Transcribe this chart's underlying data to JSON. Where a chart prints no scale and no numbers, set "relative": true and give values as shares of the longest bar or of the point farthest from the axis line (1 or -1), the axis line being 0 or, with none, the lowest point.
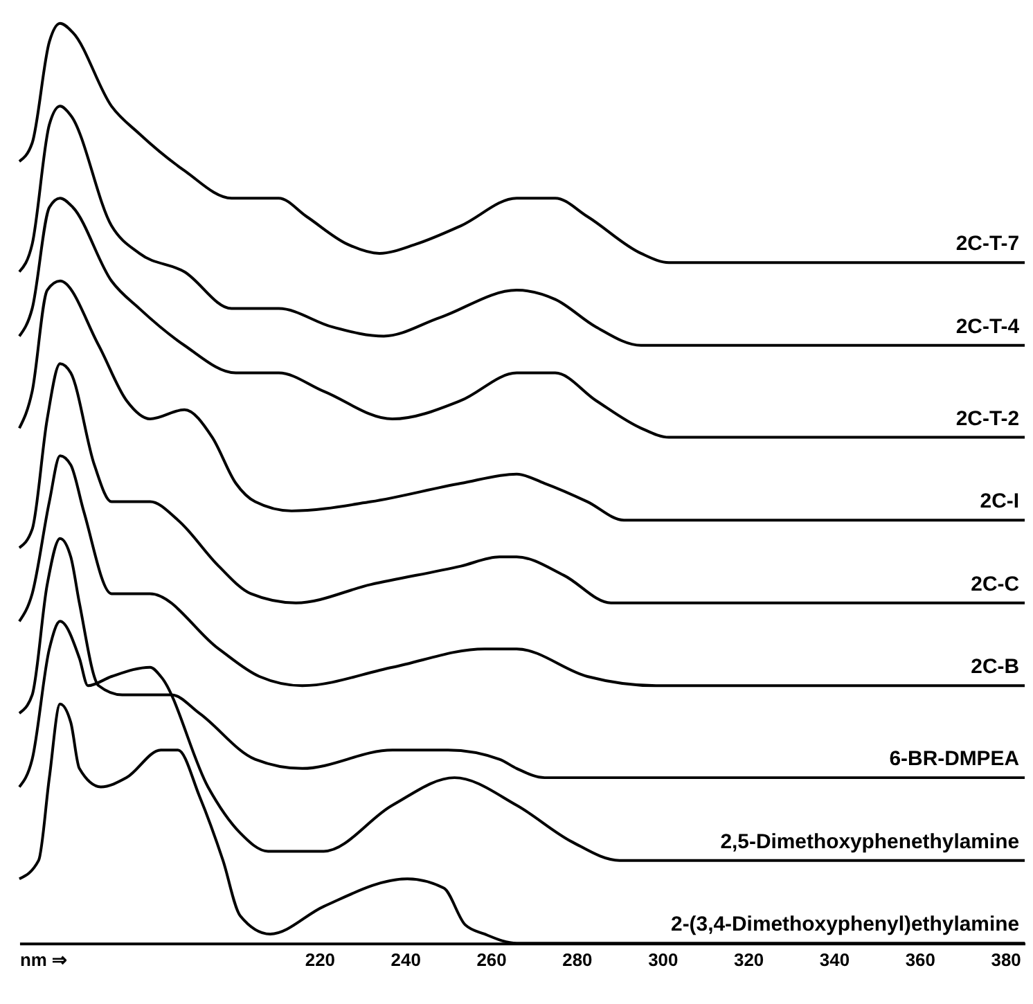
{
  "chart_data": {
    "type": "line",
    "relative": true,
    "xlabel": "nm ⇒",
    "xlim": [
      150,
      384.5
    ],
    "xticks": [
      220,
      240,
      260,
      280,
      300,
      320,
      340,
      360,
      380
    ],
    "grid": false,
    "series": [
      {
        "name": "2C-T-7",
        "color": "#000000",
        "x": [
          150,
          153,
          157,
          159.5,
          162.5,
          171.5,
          178,
          188.5,
          199.5,
          210.5,
          217,
          226.5,
          234,
          242.5,
          253,
          266,
          275,
          282.5,
          295,
          301.5,
          384.5
        ],
        "values": [
          0.85,
          0.87,
          0.98,
          1.0,
          0.99,
          0.91,
          0.88,
          0.84,
          0.81,
          0.81,
          0.79,
          0.76,
          0.75,
          0.76,
          0.78,
          0.81,
          0.81,
          0.79,
          0.75,
          0.74,
          0.74
        ]
      },
      {
        "name": "2C-T-4",
        "color": "#000000",
        "x": [
          150,
          153,
          157,
          159.5,
          162,
          171.5,
          178,
          188.5,
          199.5,
          210.5,
          223,
          235,
          248,
          266,
          275,
          284.5,
          295,
          301.5,
          384.5
        ],
        "values": [
          0.73,
          0.76,
          0.89,
          0.91,
          0.9,
          0.78,
          0.75,
          0.73,
          0.69,
          0.69,
          0.67,
          0.66,
          0.68,
          0.71,
          0.7,
          0.67,
          0.65,
          0.65,
          0.65
        ]
      },
      {
        "name": "2C-T-2",
        "color": "#000000",
        "x": [
          150,
          153,
          157,
          159.5,
          162.5,
          171.5,
          178,
          188.5,
          200.5,
          210.5,
          221,
          237,
          253,
          266,
          275,
          284.5,
          295,
          301.5,
          384.5
        ],
        "values": [
          0.66,
          0.69,
          0.8,
          0.81,
          0.8,
          0.72,
          0.69,
          0.65,
          0.62,
          0.62,
          0.6,
          0.57,
          0.59,
          0.62,
          0.62,
          0.59,
          0.56,
          0.55,
          0.55
        ]
      },
      {
        "name": "2C-I",
        "color": "#000000",
        "x": [
          150,
          153,
          156.5,
          159.5,
          168.5,
          175,
          180.5,
          188.5,
          195,
          200.5,
          205,
          213.5,
          232,
          253,
          266,
          272.5,
          282.5,
          291,
          301.5,
          384.5
        ],
        "values": [
          0.56,
          0.6,
          0.71,
          0.72,
          0.65,
          0.59,
          0.57,
          0.58,
          0.55,
          0.5,
          0.48,
          0.47,
          0.48,
          0.5,
          0.51,
          0.5,
          0.48,
          0.46,
          0.46,
          0.46
        ]
      },
      {
        "name": "2C-C",
        "color": "#000000",
        "x": [
          150,
          153,
          156.5,
          159.5,
          162,
          167.5,
          171.5,
          180.5,
          187,
          196.5,
          204,
          214.5,
          232,
          253,
          262,
          266,
          277,
          288,
          301.5,
          384.5
        ],
        "values": [
          0.43,
          0.45,
          0.57,
          0.63,
          0.62,
          0.52,
          0.48,
          0.48,
          0.46,
          0.41,
          0.38,
          0.37,
          0.39,
          0.41,
          0.42,
          0.42,
          0.4,
          0.37,
          0.37,
          0.37
        ]
      },
      {
        "name": "2C-B",
        "color": "#000000",
        "x": [
          150,
          153,
          157,
          159.5,
          162,
          165,
          171.5,
          180.5,
          196.5,
          206,
          216,
          237,
          258.5,
          266,
          282.5,
          298.5,
          301.5,
          384.5
        ],
        "values": [
          0.35,
          0.38,
          0.48,
          0.53,
          0.52,
          0.47,
          0.38,
          0.38,
          0.32,
          0.29,
          0.28,
          0.3,
          0.32,
          0.32,
          0.29,
          0.28,
          0.28,
          0.28
        ]
      },
      {
        "name": "6-BR-DMPEA",
        "color": "#000000",
        "x": [
          150,
          153,
          156.5,
          159.5,
          162,
          164,
          168.5,
          174,
          185.5,
          192,
          205,
          216,
          237,
          250,
          262,
          266,
          272.5,
          384.5
        ],
        "values": [
          0.25,
          0.27,
          0.39,
          0.44,
          0.42,
          0.37,
          0.28,
          0.27,
          0.27,
          0.25,
          0.2,
          0.19,
          0.21,
          0.21,
          0.2,
          0.19,
          0.18,
          0.18
        ]
      },
      {
        "name": "2,5-Dimethoxyphenethylamine",
        "color": "#000000",
        "x": [
          150,
          153,
          157,
          159.5,
          164,
          166,
          171.5,
          180.5,
          183,
          194,
          201.5,
          208,
          221,
          237,
          251.5,
          266,
          279,
          290,
          301.5,
          384.5
        ],
        "values": [
          0.17,
          0.2,
          0.32,
          0.35,
          0.31,
          0.28,
          0.29,
          0.3,
          0.29,
          0.17,
          0.12,
          0.1,
          0.1,
          0.15,
          0.18,
          0.15,
          0.11,
          0.09,
          0.09,
          0.09
        ]
      },
      {
        "name": "2-(3,4-Dimethoxyphenyl)ethylamine",
        "color": "#000000",
        "x": [
          150,
          154.5,
          157,
          159.5,
          162,
          164,
          169,
          175,
          183,
          187,
          192,
          197.5,
          201.5,
          208.5,
          221,
          240.5,
          249,
          254,
          258.5,
          266,
          384.5
        ],
        "values": [
          0.07,
          0.09,
          0.18,
          0.26,
          0.24,
          0.19,
          0.17,
          0.18,
          0.21,
          0.21,
          0.16,
          0.09,
          0.03,
          0.01,
          0.04,
          0.07,
          0.06,
          0.02,
          0.01,
          0.0,
          0.0
        ]
      }
    ]
  }
}
